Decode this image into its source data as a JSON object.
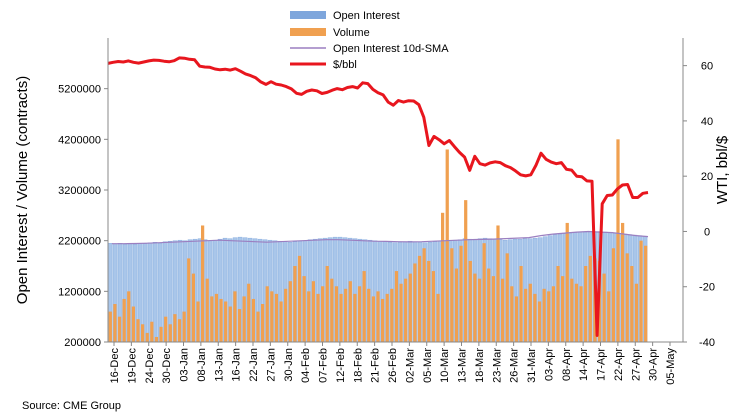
{
  "chart_data": {
    "type": "bar",
    "title": "",
    "source": "Source: CME Group",
    "left_axis": {
      "label": "Open Interest / Volume (contracts)",
      "range": [
        200000,
        6200000
      ],
      "ticks": [
        "200000",
        "1200000",
        "2200000",
        "3200000",
        "4200000",
        "5200000"
      ]
    },
    "right_axis": {
      "label": "WTI, bbl/$",
      "range": [
        -40,
        70
      ],
      "ticks": [
        "-40",
        "-20",
        "0",
        "20",
        "40",
        "60"
      ]
    },
    "x_tick_labels": [
      "16-Dec",
      "19-Dec",
      "24-Dec",
      "30-Dec",
      "03-Jan",
      "08-Jan",
      "13-Jan",
      "16-Jan",
      "22-Jan",
      "27-Jan",
      "30-Jan",
      "04-Feb",
      "07-Feb",
      "12-Feb",
      "18-Feb",
      "21-Feb",
      "26-Feb",
      "02-Mar",
      "05-Mar",
      "10-Mar",
      "13-Mar",
      "18-Mar",
      "23-Mar",
      "26-Mar",
      "31-Mar",
      "03-Apr",
      "08-Apr",
      "14-Apr",
      "17-Apr",
      "22-Apr",
      "27-Apr",
      "30-Apr",
      "05-May"
    ],
    "legend": [
      {
        "name": "Open Interest",
        "kind": "bar",
        "color": "#7ea6dc"
      },
      {
        "name": "Volume",
        "kind": "bar",
        "color": "#f0a050"
      },
      {
        "name": "Open Interest 10d-SMA",
        "kind": "line",
        "color": "#9b7fc0"
      },
      {
        "name": "$/bbl",
        "kind": "line",
        "color": "#e8161e"
      }
    ],
    "series": [
      {
        "name": "Open Interest",
        "axis": "left",
        "values": [
          2150000,
          2140000,
          2150000,
          2130000,
          2140000,
          2130000,
          2150000,
          2140000,
          2160000,
          2170000,
          2150000,
          2180000,
          2190000,
          2200000,
          2210000,
          2200000,
          2220000,
          2230000,
          2240000,
          2220000,
          2200000,
          2210000,
          2230000,
          2250000,
          2240000,
          2260000,
          2270000,
          2260000,
          2250000,
          2240000,
          2230000,
          2220000,
          2210000,
          2200000,
          2190000,
          2180000,
          2170000,
          2180000,
          2190000,
          2200000,
          2220000,
          2230000,
          2240000,
          2250000,
          2260000,
          2270000,
          2270000,
          2260000,
          2250000,
          2240000,
          2230000,
          2220000,
          2210000,
          2200000,
          2190000,
          2180000,
          2170000,
          2160000,
          2170000,
          2180000,
          2190000,
          2180000,
          2170000,
          2160000,
          2170000,
          2180000,
          2190000,
          2200000,
          2200000,
          2210000,
          2220000,
          2240000,
          2230000,
          2230000,
          2240000,
          2250000,
          2240000,
          2230000,
          2220000,
          2210000,
          2220000,
          2230000,
          2230000,
          2240000,
          2240000,
          2250000,
          2260000,
          2280000,
          2300000,
          2320000,
          2330000,
          2340000,
          2350000,
          2360000,
          2370000,
          2370000,
          2380000,
          2370000,
          2380000,
          2370000,
          2360000,
          2350000,
          2340000,
          2330000,
          2320000,
          2310000,
          2300000,
          2290000
        ]
      },
      {
        "name": "Volume",
        "axis": "left",
        "values": [
          800000,
          950000,
          700000,
          1050000,
          1200000,
          900000,
          650000,
          550000,
          380000,
          600000,
          300000,
          500000,
          700000,
          550000,
          750000,
          650000,
          800000,
          1850000,
          1550000,
          1000000,
          2500000,
          1450000,
          1100000,
          1150000,
          1050000,
          1000000,
          900000,
          1200000,
          850000,
          1100000,
          1350000,
          1050000,
          800000,
          950000,
          1300000,
          1200000,
          1150000,
          1000000,
          1250000,
          1400000,
          1700000,
          1900000,
          1500000,
          1200000,
          1400000,
          1150000,
          1300000,
          1700000,
          1450000,
          1300000,
          1150000,
          1250000,
          1400000,
          1150000,
          1300000,
          1600000,
          1250000,
          1100000,
          1200000,
          1050000,
          1150000,
          1250000,
          1600000,
          1350000,
          1450000,
          1550000,
          1750000,
          1900000,
          2050000,
          1800000,
          1600000,
          1150000,
          2750000,
          4000000,
          2050000,
          1650000,
          2100000,
          3000000,
          1800000,
          1550000,
          1450000,
          2150000,
          1650000,
          1500000,
          2500000,
          1450000,
          1950000,
          1300000,
          1100000,
          1700000,
          1250000,
          1350000,
          1150000,
          1000000,
          1250000,
          1200000,
          1300000,
          1700000,
          1500000,
          2550000,
          1450000,
          1350000,
          1300000,
          1700000,
          1900000,
          1850000,
          1800000,
          1550000,
          1200000,
          2050000,
          4200000,
          2550000,
          1950000,
          1700000,
          1350000,
          2200000,
          2100000
        ]
      },
      {
        "name": "Open Interest 10d-SMA",
        "axis": "left",
        "values": [
          2140000,
          2140000,
          2145000,
          2150000,
          2160000,
          2170000,
          2180000,
          2190000,
          2200000,
          2210000,
          2200000,
          2190000,
          2180000,
          2170000,
          2180000,
          2190000,
          2200000,
          2210000,
          2220000,
          2220000,
          2210000,
          2200000,
          2190000,
          2185000,
          2180000,
          2175000,
          2180000,
          2190000,
          2200000,
          2210000,
          2220000,
          2225000,
          2230000,
          2240000,
          2250000,
          2260000,
          2300000,
          2330000,
          2350000,
          2370000,
          2380000,
          2370000,
          2360000,
          2330000,
          2300000,
          2280000
        ]
      },
      {
        "name": "$/bbl",
        "axis": "right",
        "values": [
          60.8,
          61.2,
          61.5,
          61.3,
          61.7,
          61.2,
          60.9,
          61.3,
          61.7,
          62.0,
          61.9,
          61.6,
          61.4,
          61.8,
          62.8,
          62.7,
          62.3,
          62.1,
          59.8,
          59.5,
          59.4,
          58.8,
          58.5,
          58.7,
          58.4,
          58.9,
          58.0,
          57.0,
          56.4,
          55.6,
          54.1,
          53.2,
          54.2,
          53.3,
          53.0,
          52.4,
          51.6,
          50.0,
          49.6,
          50.7,
          51.2,
          50.9,
          49.9,
          50.3,
          51.1,
          51.7,
          51.3,
          52.1,
          52.4,
          51.9,
          53.8,
          53.5,
          51.4,
          50.2,
          49.4,
          46.8,
          45.7,
          47.4,
          46.8,
          47.3,
          47.2,
          45.9,
          41.3,
          31.1,
          34.4,
          33.2,
          31.7,
          32.9,
          30.7,
          28.6,
          26.9,
          22.1,
          27.2,
          24.5,
          24.0,
          24.8,
          25.2,
          24.9,
          23.8,
          23.1,
          21.9,
          20.5,
          20.1,
          20.5,
          23.9,
          28.3,
          26.1,
          25.1,
          24.5,
          24.9,
          22.5,
          22.2,
          20.0,
          19.8,
          18.3,
          18.2,
          -37.6,
          10.0,
          13.0,
          13.2,
          15.4,
          16.8,
          17.0,
          12.3,
          12.3,
          13.8,
          14.1
        ]
      }
    ]
  }
}
